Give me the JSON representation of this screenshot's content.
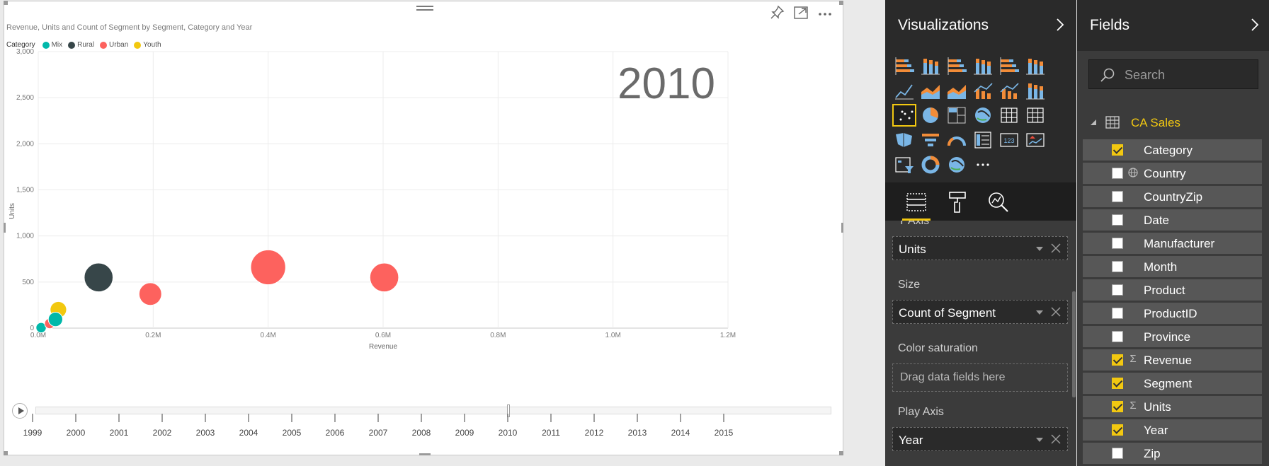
{
  "visual": {
    "title": "Revenue, Units and Count of Segment by Segment, Category and Year",
    "legend_title": "Category",
    "legend": [
      {
        "name": "Mix",
        "color": "#01b8aa"
      },
      {
        "name": "Rural",
        "color": "#374649"
      },
      {
        "name": "Urban",
        "color": "#fd625e"
      },
      {
        "name": "Youth",
        "color": "#f2c80f"
      }
    ],
    "header_icons": [
      "pin-icon",
      "focus-mode-icon",
      "more-options-icon"
    ]
  },
  "chart_data": {
    "type": "scatter",
    "play_value": "2010",
    "xlabel": "Revenue",
    "ylabel": "Units",
    "xlim": [
      0,
      1200000
    ],
    "ylim": [
      0,
      3000
    ],
    "x_ticks": [
      "0.0M",
      "0.2M",
      "0.4M",
      "0.6M",
      "0.8M",
      "1.0M",
      "1.2M"
    ],
    "x_tick_values": [
      0,
      200000,
      400000,
      600000,
      800000,
      1000000,
      1200000
    ],
    "y_ticks": [
      "0",
      "500",
      "1,000",
      "1,500",
      "2,000",
      "2,500",
      "3,000"
    ],
    "y_tick_values": [
      0,
      500,
      1000,
      1500,
      2000,
      2500,
      3000
    ],
    "grid": true,
    "points": [
      {
        "category": "Mix",
        "x": 5000,
        "y": 5,
        "size": 5,
        "color": "#01b8aa"
      },
      {
        "category": "Urban",
        "x": 20000,
        "y": 50,
        "size": 5,
        "color": "#fd625e"
      },
      {
        "category": "Youth",
        "x": 35000,
        "y": 200,
        "size": 8,
        "color": "#f2c80f"
      },
      {
        "category": "Mix",
        "x": 30000,
        "y": 95,
        "size": 7,
        "color": "#01b8aa"
      },
      {
        "category": "Rural",
        "x": 105000,
        "y": 550,
        "size": 14,
        "color": "#374649"
      },
      {
        "category": "Urban",
        "x": 195000,
        "y": 370,
        "size": 11,
        "color": "#fd625e"
      },
      {
        "category": "Urban",
        "x": 400000,
        "y": 660,
        "size": 17,
        "color": "#fd625e"
      },
      {
        "category": "Urban",
        "x": 602000,
        "y": 550,
        "size": 14,
        "color": "#fd625e"
      }
    ]
  },
  "play_axis": {
    "years": [
      "1999",
      "2000",
      "2001",
      "2002",
      "2003",
      "2004",
      "2005",
      "2006",
      "2007",
      "2008",
      "2009",
      "2010",
      "2011",
      "2012",
      "2013",
      "2014",
      "2015"
    ],
    "current_index": 11
  },
  "visualizations": {
    "title": "Visualizations",
    "selected_index": 12,
    "icons": [
      "stacked-bar-icon",
      "stacked-column-icon",
      "clustered-bar-icon",
      "clustered-column-icon",
      "100-stacked-bar-icon",
      "100-stacked-column-icon",
      "line-chart-icon",
      "area-chart-icon",
      "stacked-area-icon",
      "line-stacked-column-icon",
      "line-clustered-column-icon",
      "ribbon-chart-icon",
      "scatter-chart-icon",
      "pie-chart-icon",
      "treemap-icon",
      "map-icon",
      "table-icon",
      "matrix-icon",
      "filled-map-icon",
      "funnel-icon",
      "gauge-icon",
      "multi-row-card-icon",
      "card-icon",
      "kpi-icon",
      "slicer-icon",
      "donut-chart-icon",
      "globe-map-icon",
      "more-visuals-icon"
    ],
    "tabs": [
      "fields-tab-icon",
      "format-tab-icon",
      "analytics-tab-icon"
    ],
    "wells": {
      "yaxis_label": "Y Axis",
      "yaxis_value": "Units",
      "size_label": "Size",
      "size_value": "Count of Segment",
      "color_label": "Color saturation",
      "color_placeholder": "Drag data fields here",
      "play_label": "Play Axis",
      "play_value": "Year"
    }
  },
  "fields": {
    "title": "Fields",
    "search_placeholder": "Search",
    "table_name": "CA Sales",
    "items": [
      {
        "name": "Category",
        "checked": true,
        "type": ""
      },
      {
        "name": "Country",
        "checked": false,
        "type": "globe"
      },
      {
        "name": "CountryZip",
        "checked": false,
        "type": ""
      },
      {
        "name": "Date",
        "checked": false,
        "type": ""
      },
      {
        "name": "Manufacturer",
        "checked": false,
        "type": ""
      },
      {
        "name": "Month",
        "checked": false,
        "type": ""
      },
      {
        "name": "Product",
        "checked": false,
        "type": ""
      },
      {
        "name": "ProductID",
        "checked": false,
        "type": ""
      },
      {
        "name": "Province",
        "checked": false,
        "type": ""
      },
      {
        "name": "Revenue",
        "checked": true,
        "type": "sigma"
      },
      {
        "name": "Segment",
        "checked": true,
        "type": ""
      },
      {
        "name": "Units",
        "checked": true,
        "type": "sigma"
      },
      {
        "name": "Year",
        "checked": true,
        "type": ""
      },
      {
        "name": "Zip",
        "checked": false,
        "type": ""
      }
    ]
  }
}
